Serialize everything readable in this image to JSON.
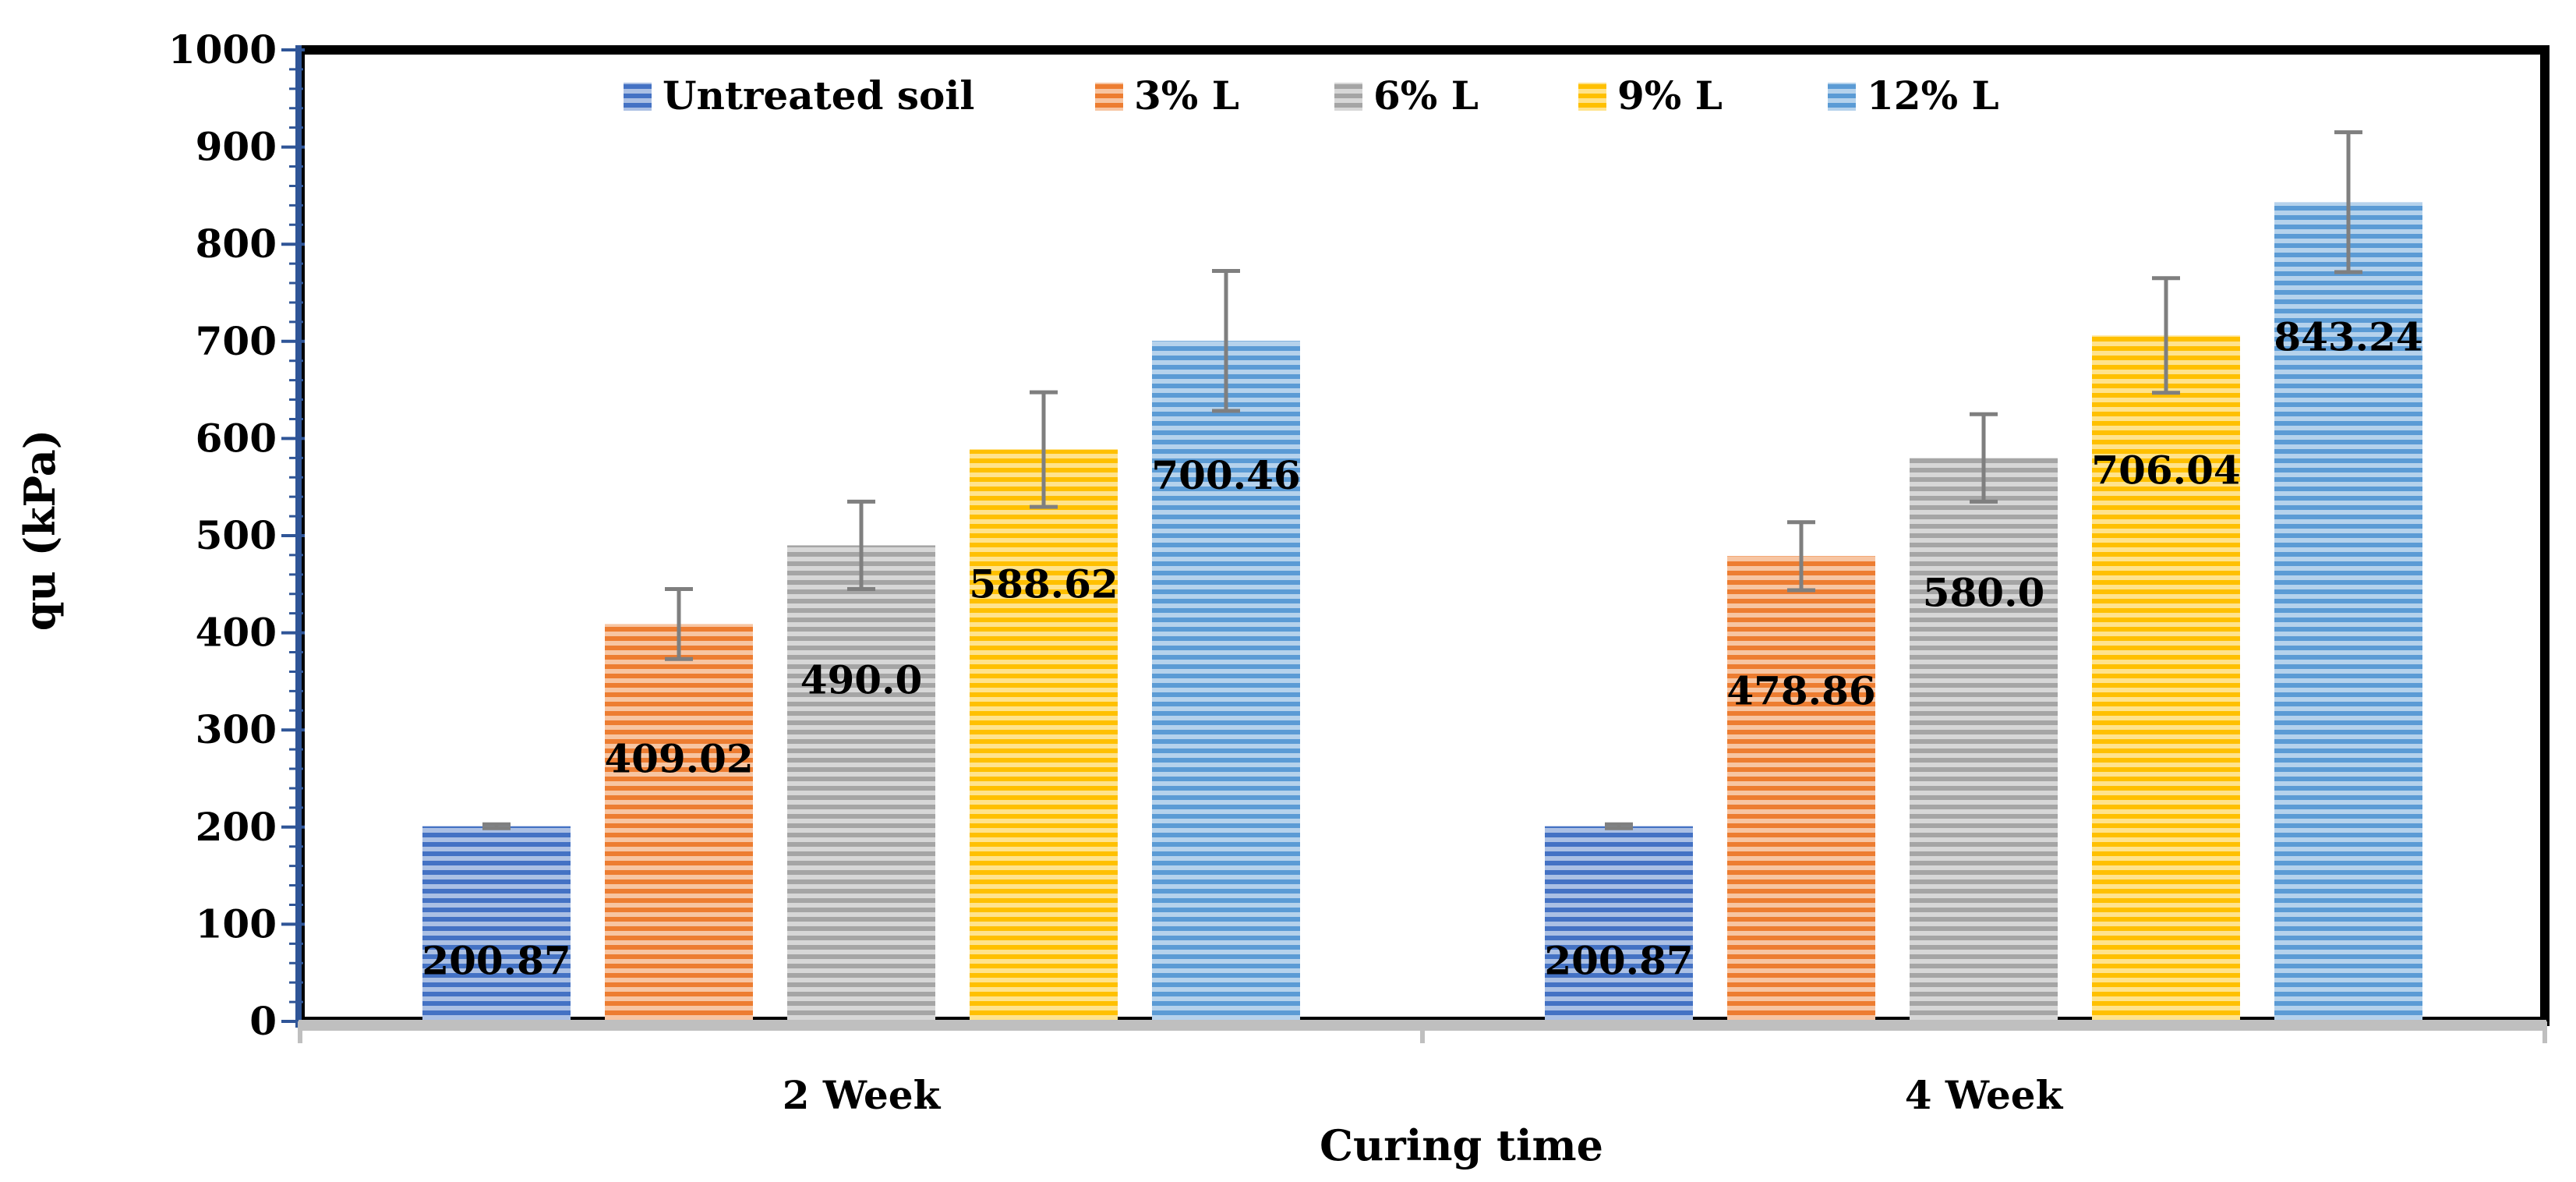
{
  "chart_data": {
    "type": "bar",
    "title": "",
    "xlabel": "Curing time",
    "ylabel": "qu (kPa)",
    "ylim": [
      0,
      1000
    ],
    "yticks": [
      0,
      100,
      200,
      300,
      400,
      500,
      600,
      700,
      800,
      900,
      1000
    ],
    "categories": [
      "2 Week",
      "4 Week"
    ],
    "legend_position": "top",
    "series": [
      {
        "name": "Untreated soil",
        "color": "#4472C4",
        "values": [
          200.87,
          200.87
        ],
        "errors": [
          2,
          2
        ],
        "labels": [
          "200.87",
          "200.87"
        ]
      },
      {
        "name": "3% L",
        "color": "#ED7D31",
        "values": [
          409.02,
          478.86
        ],
        "errors": [
          36,
          35
        ],
        "labels": [
          "409.02",
          "478.86"
        ]
      },
      {
        "name": "6% L",
        "color": "#A5A5A5",
        "values": [
          490.0,
          580.0
        ],
        "errors": [
          45,
          45
        ],
        "labels": [
          "490.0",
          "580.0"
        ]
      },
      {
        "name": "9% L",
        "color": "#FFC000",
        "values": [
          588.62,
          706.04
        ],
        "errors": [
          59,
          59
        ],
        "labels": [
          "588.62",
          "706.04"
        ]
      },
      {
        "name": "12% L",
        "color": "#5B9BD5",
        "values": [
          700.46,
          843.24
        ],
        "errors": [
          72,
          72
        ],
        "labels": [
          "700.46",
          "843.24"
        ]
      }
    ]
  }
}
